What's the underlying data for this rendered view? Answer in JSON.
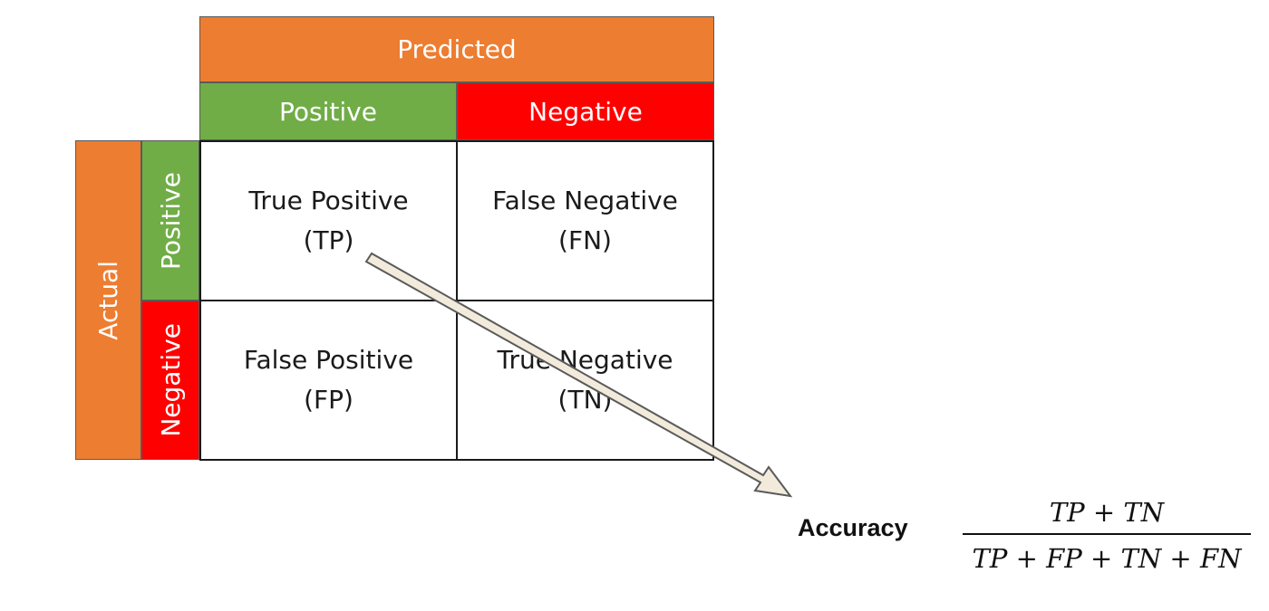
{
  "header": {
    "predicted": "Predicted",
    "pred_positive": "Positive",
    "pred_negative": "Negative",
    "actual": "Actual",
    "act_positive": "Positive",
    "act_negative": "Negative"
  },
  "cells": {
    "tp": {
      "name": "True Positive",
      "abbr": "(TP)"
    },
    "fn": {
      "name": "False Negative",
      "abbr": "(FN)"
    },
    "fp": {
      "name": "False Positive",
      "abbr": "(FP)"
    },
    "tn": {
      "name": "True Negative",
      "abbr": "(TN)"
    }
  },
  "accuracy": {
    "label": "Accuracy",
    "numerator": "TP + TN",
    "denominator": "TP + FP + TN + FN"
  },
  "colors": {
    "orange": "#ed7d31",
    "green": "#70ad47",
    "red": "#ff0000",
    "arrow_fill": "#f2ebdc",
    "arrow_stroke": "#5a5a5a"
  }
}
